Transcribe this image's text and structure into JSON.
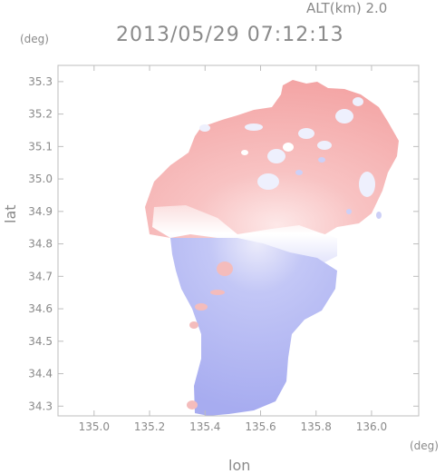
{
  "header": {
    "altitude_label": "ALT(km) 2.0",
    "datetime": "2013/05/29 07:12:13"
  },
  "axes": {
    "lat_unit": "(deg)",
    "lon_unit": "(deg)",
    "ylabel": "lat",
    "xlabel": "lon"
  },
  "chart_data": {
    "type": "heatmap",
    "xlabel": "lon",
    "ylabel": "lat",
    "x_unit": "(deg)",
    "y_unit": "(deg)",
    "xlim": [
      134.87,
      136.17
    ],
    "ylim": [
      34.27,
      35.35
    ],
    "x_ticks": [
      "135.0",
      "135.2",
      "135.4",
      "135.6",
      "135.8",
      "136.0"
    ],
    "x_tick_values": [
      135.0,
      135.2,
      135.4,
      135.6,
      135.8,
      136.0
    ],
    "y_ticks": [
      "34.3",
      "34.4",
      "34.5",
      "34.6",
      "34.7",
      "34.8",
      "34.9",
      "35.0",
      "35.1",
      "35.2",
      "35.3"
    ],
    "y_tick_values": [
      34.3,
      34.4,
      34.5,
      34.6,
      34.7,
      34.8,
      34.9,
      35.0,
      35.1,
      35.2,
      35.3
    ],
    "grid": false,
    "colors": {
      "positive": "#f4a0a0",
      "negative": "#a9aef2",
      "zero": "#ffffff",
      "axis": "#bdbdbd"
    },
    "radar_center": [
      135.52,
      34.82
    ]
  }
}
